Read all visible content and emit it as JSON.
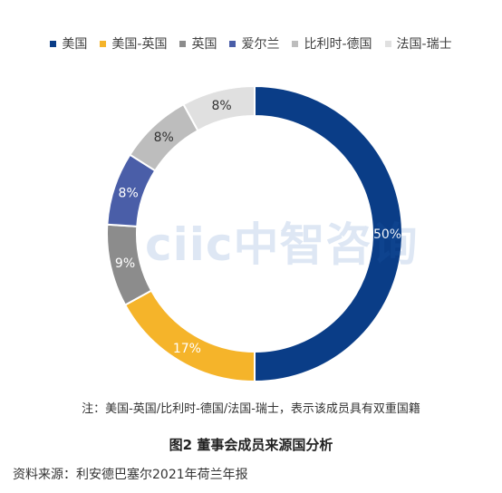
{
  "chart_data": {
    "type": "donut",
    "series": [
      {
        "name": "美国",
        "value": 50,
        "label": "50%",
        "color": "#0a3d87"
      },
      {
        "name": "美国-英国",
        "value": 17,
        "label": "17%",
        "color": "#f5b42a"
      },
      {
        "name": "英国",
        "value": 9,
        "label": "9%",
        "color": "#8c8c8c"
      },
      {
        "name": "爱尔兰",
        "value": 8,
        "label": "8%",
        "color": "#4a5ea8"
      },
      {
        "name": "比利时-德国",
        "value": 8,
        "label": "8%",
        "color": "#bdbdbd"
      },
      {
        "name": "法国-瑞士",
        "value": 8,
        "label": "8%",
        "color": "#e0e0e0"
      }
    ],
    "legend_position": "top"
  },
  "watermark": "ciic中智咨询",
  "note": "注：美国-英国/比利时-德国/法国-瑞士，表示该成员具有双重国籍",
  "caption": "图2 董事会成员来源国分析",
  "source": "资料来源：利安德巴塞尔2021年荷兰年报"
}
